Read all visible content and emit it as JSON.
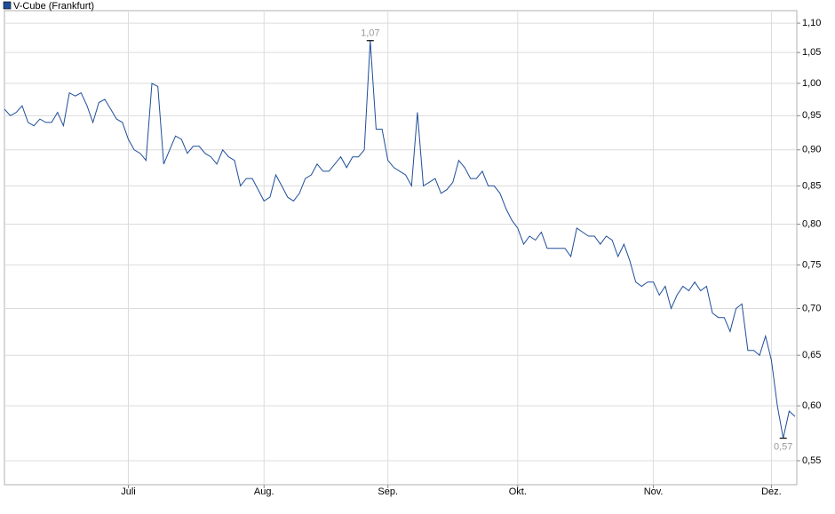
{
  "chart_data": {
    "type": "line",
    "yscale": "log",
    "grid": true,
    "ylim": [
      0.5295,
      1.122
    ],
    "yticks": [
      {
        "value": 0.55,
        "label": "0,55"
      },
      {
        "value": 0.6,
        "label": "0,60"
      },
      {
        "value": 0.65,
        "label": "0,65"
      },
      {
        "value": 0.7,
        "label": "0,70"
      },
      {
        "value": 0.75,
        "label": "0,75"
      },
      {
        "value": 0.8,
        "label": "0,80"
      },
      {
        "value": 0.85,
        "label": "0,85"
      },
      {
        "value": 0.9,
        "label": "0,90"
      },
      {
        "value": 0.95,
        "label": "0,95"
      },
      {
        "value": 1.0,
        "label": "1,00"
      },
      {
        "value": 1.05,
        "label": "1,05"
      },
      {
        "value": 1.1,
        "label": "1,10"
      }
    ],
    "categories": [
      null,
      null,
      null,
      null,
      null,
      null,
      null,
      null,
      null,
      null,
      null,
      null,
      null,
      null,
      null,
      null,
      null,
      null,
      null,
      null,
      null,
      "Juli",
      null,
      null,
      null,
      null,
      null,
      null,
      null,
      null,
      null,
      null,
      null,
      null,
      null,
      null,
      null,
      null,
      null,
      null,
      null,
      null,
      null,
      null,
      "Aug.",
      null,
      null,
      null,
      null,
      null,
      null,
      null,
      null,
      null,
      null,
      null,
      null,
      null,
      null,
      null,
      null,
      null,
      null,
      null,
      null,
      "Sep.",
      null,
      null,
      null,
      null,
      null,
      null,
      null,
      null,
      null,
      null,
      null,
      null,
      null,
      null,
      null,
      null,
      null,
      null,
      null,
      null,
      null,
      "Okt.",
      null,
      null,
      null,
      null,
      null,
      null,
      null,
      null,
      null,
      null,
      null,
      null,
      null,
      null,
      null,
      null,
      null,
      null,
      null,
      null,
      null,
      null,
      "Nov.",
      null,
      null,
      null,
      null,
      null,
      null,
      null,
      null,
      null,
      null,
      null,
      null,
      null,
      null,
      null,
      null,
      null,
      null,
      null,
      "Dez.",
      null,
      null,
      null,
      null
    ],
    "series": [
      {
        "name": "V-Cube (Frankfurt)",
        "color": "#1f4e99",
        "values": [
          0.96,
          0.95,
          0.955,
          0.965,
          0.94,
          0.935,
          0.945,
          0.94,
          0.94,
          0.955,
          0.935,
          0.985,
          0.98,
          0.985,
          0.965,
          0.94,
          0.97,
          0.975,
          0.96,
          0.945,
          0.94,
          0.915,
          0.9,
          0.895,
          0.885,
          1.0,
          0.995,
          0.88,
          0.9,
          0.92,
          0.915,
          0.895,
          0.905,
          0.905,
          0.895,
          0.89,
          0.88,
          0.9,
          0.89,
          0.885,
          0.85,
          0.86,
          0.86,
          0.845,
          0.83,
          0.835,
          0.865,
          0.85,
          0.835,
          0.83,
          0.84,
          0.86,
          0.865,
          0.88,
          0.87,
          0.87,
          0.88,
          0.89,
          0.875,
          0.89,
          0.89,
          0.9,
          1.07,
          0.93,
          0.93,
          0.885,
          0.875,
          0.87,
          0.865,
          0.85,
          0.955,
          0.85,
          0.855,
          0.86,
          0.84,
          0.845,
          0.855,
          0.885,
          0.875,
          0.86,
          0.86,
          0.87,
          0.85,
          0.85,
          0.84,
          0.82,
          0.805,
          0.795,
          0.775,
          0.785,
          0.78,
          0.79,
          0.77,
          0.77,
          0.77,
          0.77,
          0.76,
          0.795,
          0.79,
          0.785,
          0.785,
          0.775,
          0.785,
          0.78,
          0.76,
          0.775,
          0.755,
          0.73,
          0.725,
          0.73,
          0.73,
          0.715,
          0.725,
          0.7,
          0.715,
          0.725,
          0.72,
          0.73,
          0.72,
          0.725,
          0.695,
          0.69,
          0.69,
          0.675,
          0.7,
          0.705,
          0.655,
          0.655,
          0.65,
          0.67,
          0.645,
          0.6,
          0.57,
          0.595,
          0.59
        ]
      }
    ],
    "annotations": [
      {
        "value": 1.07,
        "label": "1,07"
      },
      {
        "value": 0.57,
        "label": "0,57"
      }
    ]
  }
}
